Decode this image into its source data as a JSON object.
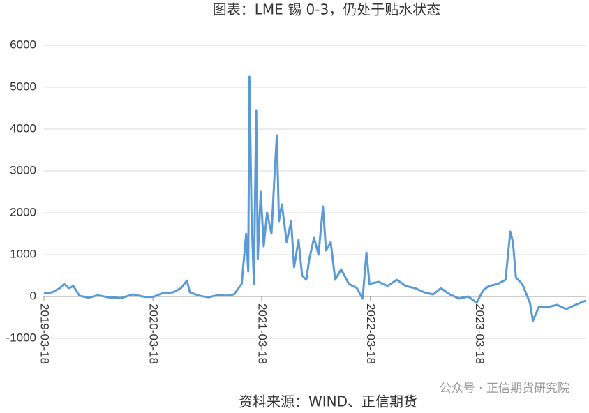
{
  "chart_data": {
    "type": "line",
    "title": "图表：LME 锡 0-3，仍处于贴水状态",
    "source": "资料来源：WIND、正信期货",
    "watermark": "公众号 · 正信期货研究院",
    "color": "#5b9bd5",
    "grid": true,
    "ylim": [
      -1000,
      6000
    ],
    "yticks": [
      -1000,
      0,
      1000,
      2000,
      3000,
      4000,
      5000,
      6000
    ],
    "xlim": [
      "2019-03-18",
      "2024-03-12"
    ],
    "xticks": [
      "2019-03-18",
      "2020-03-18",
      "2021-03-18",
      "2022-03-18",
      "2023-03-18"
    ],
    "x": [
      "2019-03-18",
      "2019-04-15",
      "2019-05-10",
      "2019-05-25",
      "2019-06-10",
      "2019-06-25",
      "2019-07-15",
      "2019-08-15",
      "2019-09-15",
      "2019-10-20",
      "2019-12-01",
      "2020-01-10",
      "2020-02-20",
      "2020-03-18",
      "2020-04-20",
      "2020-05-25",
      "2020-06-20",
      "2020-07-10",
      "2020-07-20",
      "2020-08-20",
      "2020-09-20",
      "2020-10-20",
      "2020-11-20",
      "2020-12-15",
      "2021-01-10",
      "2021-01-25",
      "2021-02-01",
      "2021-02-05",
      "2021-02-12",
      "2021-02-20",
      "2021-02-28",
      "2021-03-05",
      "2021-03-15",
      "2021-03-25",
      "2021-04-05",
      "2021-04-20",
      "2021-05-01",
      "2021-05-08",
      "2021-05-15",
      "2021-05-25",
      "2021-06-10",
      "2021-06-25",
      "2021-07-05",
      "2021-07-20",
      "2021-08-01",
      "2021-08-15",
      "2021-08-25",
      "2021-09-10",
      "2021-09-25",
      "2021-10-10",
      "2021-10-20",
      "2021-11-05",
      "2021-11-20",
      "2021-12-10",
      "2022-01-05",
      "2022-02-01",
      "2022-02-20",
      "2022-03-05",
      "2022-03-15",
      "2022-04-15",
      "2022-05-15",
      "2022-06-15",
      "2022-07-15",
      "2022-08-15",
      "2022-09-15",
      "2022-10-15",
      "2022-11-10",
      "2022-12-10",
      "2023-01-10",
      "2023-02-10",
      "2023-03-10",
      "2023-04-01",
      "2023-04-20",
      "2023-05-20",
      "2023-06-15",
      "2023-07-01",
      "2023-07-10",
      "2023-07-20",
      "2023-08-10",
      "2023-09-05",
      "2023-09-15",
      "2023-10-05",
      "2023-11-05",
      "2023-12-05",
      "2024-01-05",
      "2024-02-05",
      "2024-03-10"
    ],
    "values": [
      80,
      100,
      200,
      300,
      200,
      250,
      20,
      -30,
      30,
      -20,
      -40,
      50,
      -10,
      -10,
      80,
      100,
      200,
      380,
      100,
      20,
      -20,
      30,
      20,
      50,
      300,
      1500,
      600,
      5250,
      2000,
      300,
      4450,
      900,
      2500,
      1200,
      2000,
      1500,
      3000,
      3850,
      1800,
      2200,
      1300,
      1800,
      700,
      1350,
      500,
      400,
      900,
      1400,
      1000,
      2150,
      1100,
      1300,
      400,
      650,
      300,
      200,
      -50,
      1050,
      300,
      350,
      250,
      400,
      250,
      200,
      100,
      50,
      200,
      50,
      -50,
      0,
      -150,
      150,
      250,
      300,
      400,
      1550,
      1300,
      450,
      300,
      -150,
      -580,
      -250,
      -250,
      -200,
      -300,
      -200,
      -100
    ]
  }
}
